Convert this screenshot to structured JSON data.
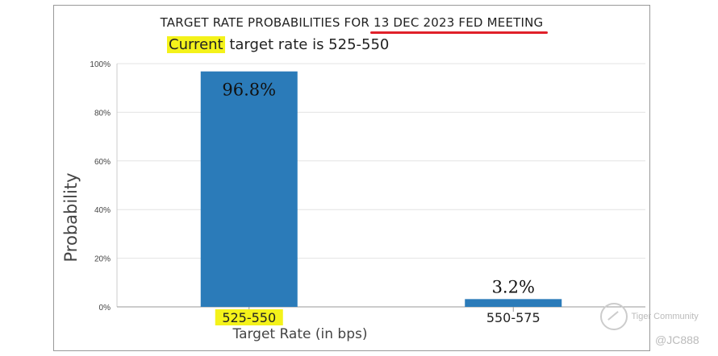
{
  "chart_data": {
    "type": "bar",
    "title_prefix": "TARGET RATE PROBABILITIES FOR ",
    "title_highlight": "13 DEC 2023 FED MEETING",
    "subtitle_highlight": "Current",
    "subtitle_rest": " target rate is 525-550",
    "categories": [
      "525-550",
      "550-575"
    ],
    "values": [
      96.8,
      3.2
    ],
    "value_labels": [
      "96.8%",
      "3.2%"
    ],
    "xlabel": "Target Rate (in bps)",
    "ylabel": "Probability",
    "ylim": [
      0,
      100
    ],
    "yticks": [
      "0%",
      "20%",
      "40%",
      "60%",
      "80%",
      "100%"
    ],
    "grid": true,
    "highlighted_category": "525-550",
    "colors": {
      "bar": "#2b7bb9",
      "highlight": "#f4f21a",
      "underline": "#e0202a"
    }
  },
  "watermark": {
    "brand": "Tiger Community",
    "user": "@JC888"
  }
}
